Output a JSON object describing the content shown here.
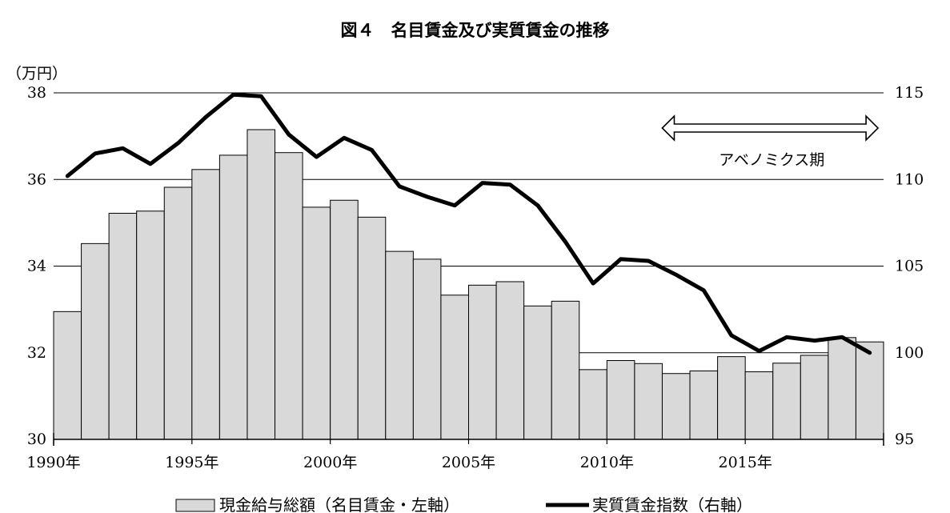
{
  "title": "図４　名目賃金及び実質賃金の推移",
  "chart_data": {
    "type": "bar+line",
    "title": "図４　名目賃金及び実質賃金の推移",
    "left_axis_unit": "（万円）",
    "left_ylim": [
      30,
      38
    ],
    "left_ticks": [
      "30",
      "32",
      "34",
      "36",
      "38"
    ],
    "right_ylim": [
      95,
      115
    ],
    "right_ticks": [
      "95",
      "100",
      "105",
      "110",
      "115"
    ],
    "x_tick_labels": [
      "1990年",
      "1995年",
      "2000年",
      "2005年",
      "2010年",
      "2015年"
    ],
    "x_tick_years": [
      1990,
      1995,
      2000,
      2005,
      2010,
      2015
    ],
    "years": [
      1990,
      1991,
      1992,
      1993,
      1994,
      1995,
      1996,
      1997,
      1998,
      1999,
      2000,
      2001,
      2002,
      2003,
      2004,
      2005,
      2006,
      2007,
      2008,
      2009,
      2010,
      2011,
      2012,
      2013,
      2014,
      2015,
      2016,
      2017,
      2018,
      2019
    ],
    "grid": true,
    "series": [
      {
        "name": "現金給与総額（名目賃金・左軸）",
        "type": "bar",
        "axis": "left",
        "color": "#d9d9d9",
        "values": [
          32.95,
          34.52,
          35.22,
          35.27,
          35.82,
          36.23,
          36.56,
          37.15,
          36.62,
          35.36,
          35.52,
          35.13,
          34.34,
          34.16,
          33.33,
          33.56,
          33.64,
          33.08,
          33.19,
          31.61,
          31.82,
          31.75,
          31.52,
          31.58,
          31.91,
          31.56,
          31.76,
          31.94,
          32.35,
          32.25
        ]
      },
      {
        "name": "実質賃金指数（右軸）",
        "type": "line",
        "axis": "right",
        "color": "#000000",
        "values": [
          110.2,
          111.5,
          111.8,
          110.9,
          112.1,
          113.6,
          114.9,
          114.8,
          112.6,
          111.3,
          112.4,
          111.7,
          109.6,
          109.0,
          108.5,
          109.8,
          109.7,
          108.5,
          106.4,
          104.0,
          105.4,
          105.3,
          104.5,
          103.6,
          101.0,
          100.1,
          100.9,
          100.7,
          100.9,
          100.0
        ]
      }
    ],
    "annotation": {
      "text": "アベノミクス期",
      "from_year": 2012,
      "to_year": 2019.8
    },
    "legend_position": "bottom"
  }
}
